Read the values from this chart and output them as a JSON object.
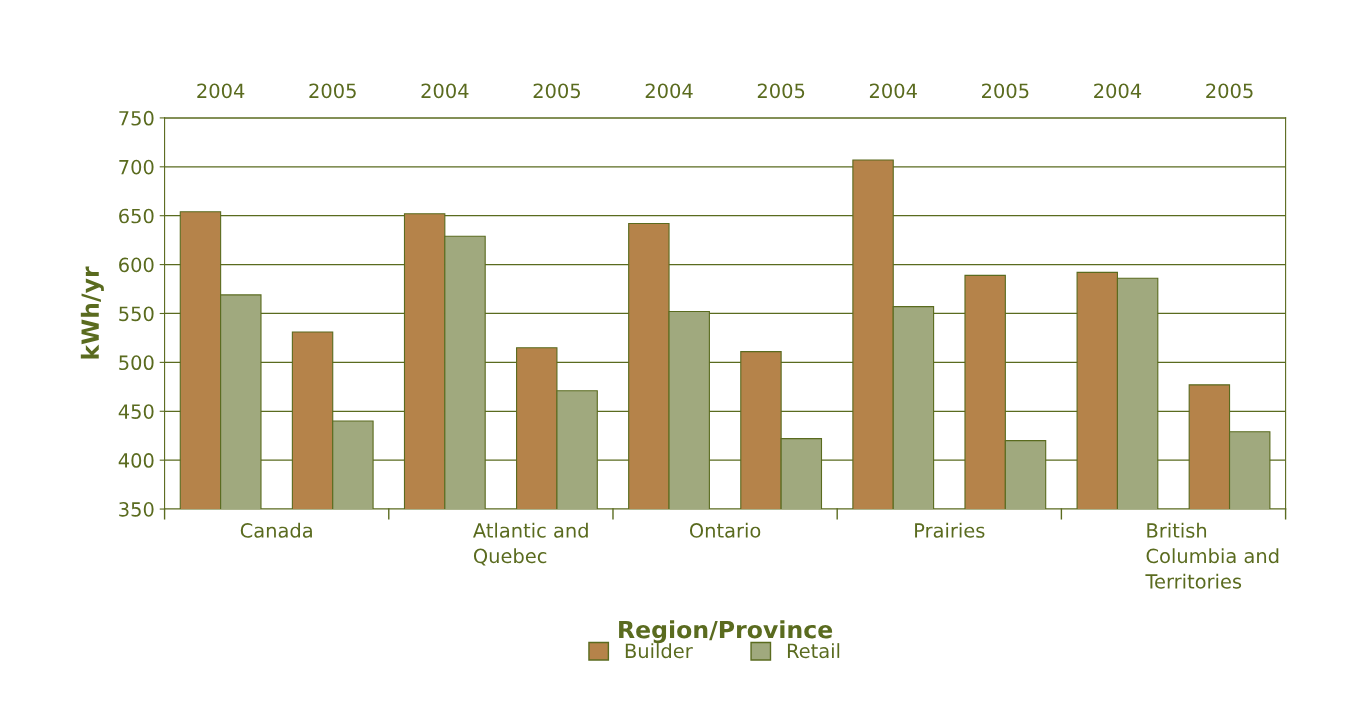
{
  "chart_data": {
    "type": "bar",
    "xlabel": "Region/Province",
    "ylabel": "kWh/yr",
    "categories": [
      "2004",
      "2005",
      "2004",
      "2005",
      "2004",
      "2005",
      "2004",
      "2005",
      "2004",
      "2005"
    ],
    "annotations": [
      "Canada",
      "Atlantic and\nQuebec",
      "Ontario",
      "Prairies",
      "British\nColumbia and\nTerritories"
    ],
    "series": [
      {
        "name": "Builder",
        "color": "#b5834a",
        "values": [
          654,
          531,
          652,
          515,
          642,
          511,
          707,
          589,
          592,
          477
        ]
      },
      {
        "name": "Retail",
        "color": "#a0a97e",
        "values": [
          569,
          440,
          629,
          471,
          552,
          422,
          557,
          420,
          586,
          429
        ]
      }
    ],
    "ylim": [
      350,
      750
    ],
    "yticks": [
      350,
      400,
      450,
      500,
      550,
      600,
      650,
      700,
      750
    ],
    "grid": "y",
    "legend": "bottom"
  }
}
